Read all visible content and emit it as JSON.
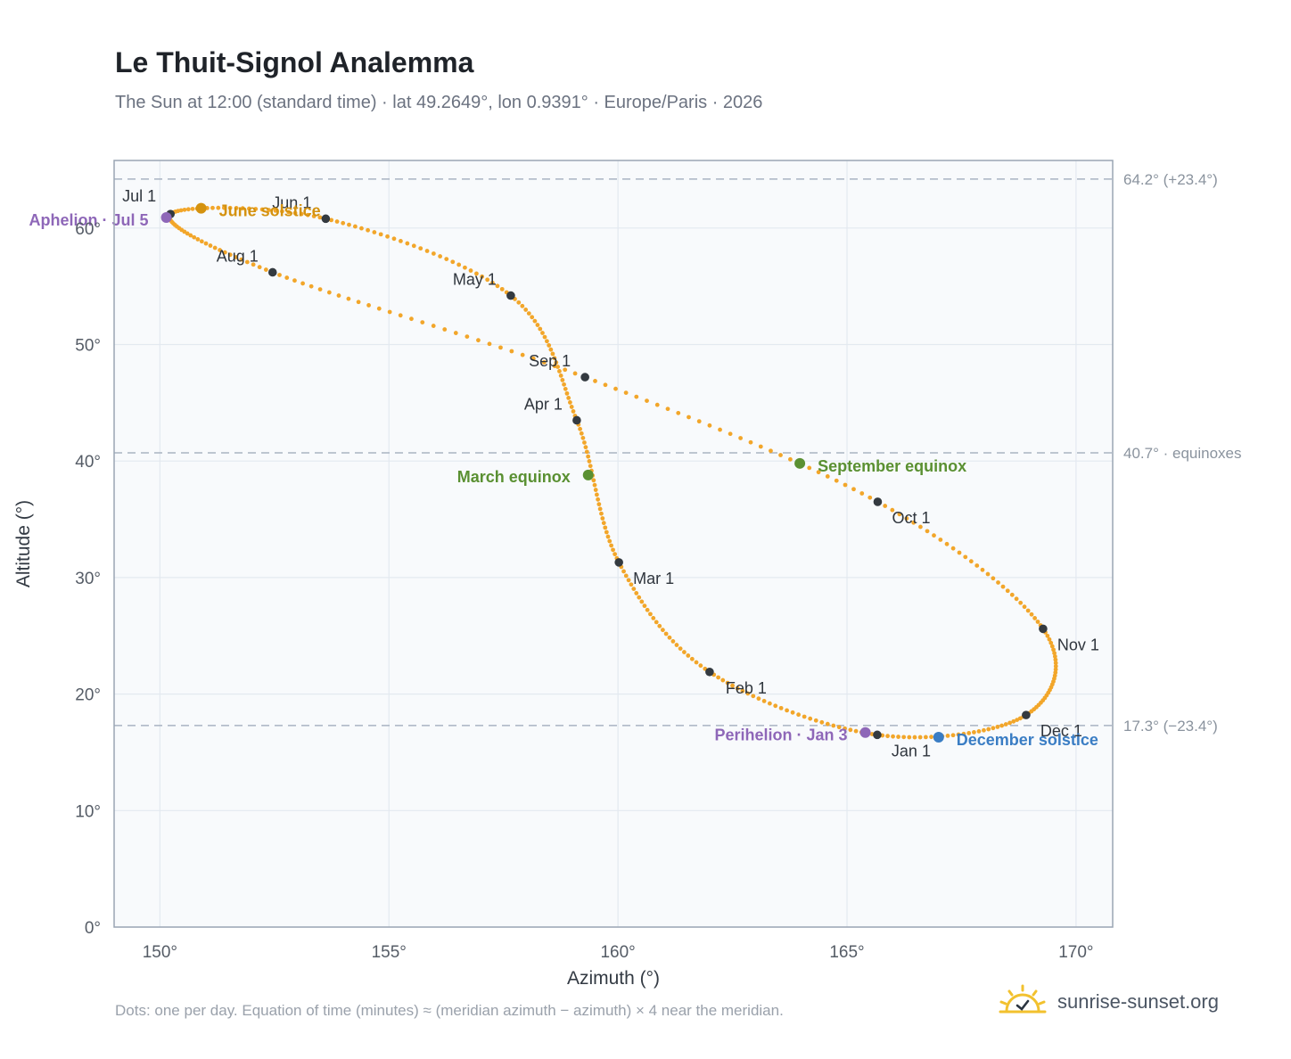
{
  "header": {
    "title": "Le Thuit-Signol Analemma",
    "subtitle": "The Sun at 12:00 (standard time) · lat 49.2649°, lon 0.9391° · Europe/Paris · 2026"
  },
  "footer": {
    "note": "Dots: one per day. Equation of time (minutes) ≈ (meridian azimuth − azimuth) × 4 near the meridian.",
    "brand": "sunrise-sunset.org",
    "brand_icon": "sun-icon"
  },
  "colors": {
    "curve": "#f2a62a",
    "month_dot": "#343a40",
    "solstice_june": "#d4920f",
    "solstice_december": "#3a7dc4",
    "equinox": "#5a9032",
    "apsis": "#8e67b8",
    "reference_line": "#a9b4c2",
    "plot_bg": "#f8fafc"
  },
  "chart_data": {
    "type": "scatter",
    "xlabel": "Azimuth (°)",
    "ylabel": "Altitude (°)",
    "xlim": [
      149,
      170.8
    ],
    "ylim": [
      0,
      65.8
    ],
    "x_ticks": [
      "150°",
      "155°",
      "160°",
      "165°",
      "170°"
    ],
    "y_ticks": [
      "0°",
      "10°",
      "20°",
      "30°",
      "40°",
      "50°",
      "60°"
    ],
    "grid": true,
    "reference_lines": [
      {
        "y": 64.2,
        "label": "64.2° (+23.4°)"
      },
      {
        "y": 40.7,
        "label": "40.7° · equinoxes"
      },
      {
        "y": 17.3,
        "label": "17.3° (−23.4°)"
      }
    ],
    "series": [
      {
        "points_azimuth": [
          165.66,
          162.0,
          160.02,
          159.1,
          157.66,
          153.62,
          150.23,
          152.46,
          159.28,
          165.67,
          169.28,
          168.91,
          165.66
        ],
        "points_altitude": [
          16.5,
          21.9,
          31.3,
          43.5,
          54.2,
          60.8,
          61.2,
          56.2,
          47.2,
          36.5,
          25.6,
          18.2,
          16.5
        ]
      }
    ],
    "month_markers": [
      {
        "label": "Jan 1",
        "azimuth": 165.66,
        "altitude": 16.5
      },
      {
        "label": "Feb 1",
        "azimuth": 162.0,
        "altitude": 21.9
      },
      {
        "label": "Mar 1",
        "azimuth": 160.02,
        "altitude": 31.3
      },
      {
        "label": "Apr 1",
        "azimuth": 159.1,
        "altitude": 43.5
      },
      {
        "label": "May 1",
        "azimuth": 157.66,
        "altitude": 54.2
      },
      {
        "label": "Jun 1",
        "azimuth": 153.62,
        "altitude": 60.8
      },
      {
        "label": "Jul 1",
        "azimuth": 150.23,
        "altitude": 61.2
      },
      {
        "label": "Aug 1",
        "azimuth": 152.46,
        "altitude": 56.2
      },
      {
        "label": "Sep 1",
        "azimuth": 159.28,
        "altitude": 47.2
      },
      {
        "label": "Oct 1",
        "azimuth": 165.67,
        "altitude": 36.5
      },
      {
        "label": "Nov 1",
        "azimuth": 169.28,
        "altitude": 25.6
      },
      {
        "label": "Dec 1",
        "azimuth": 168.91,
        "altitude": 18.2
      }
    ],
    "events": [
      {
        "label": "June solstice",
        "kind": "solstice_june",
        "azimuth": 150.9,
        "altitude": 61.7
      },
      {
        "label": "December solstice",
        "kind": "solstice_december",
        "azimuth": 167.0,
        "altitude": 16.3
      },
      {
        "label": "March equinox",
        "kind": "equinox",
        "azimuth": 159.35,
        "altitude": 38.8
      },
      {
        "label": "September equinox",
        "kind": "equinox",
        "azimuth": 163.97,
        "altitude": 39.8
      },
      {
        "label": "Aphelion · Jul 5",
        "kind": "apsis",
        "azimuth": 150.14,
        "altitude": 60.9
      },
      {
        "label": "Perihelion · Jan 3",
        "kind": "apsis",
        "azimuth": 165.4,
        "altitude": 16.7
      }
    ]
  }
}
